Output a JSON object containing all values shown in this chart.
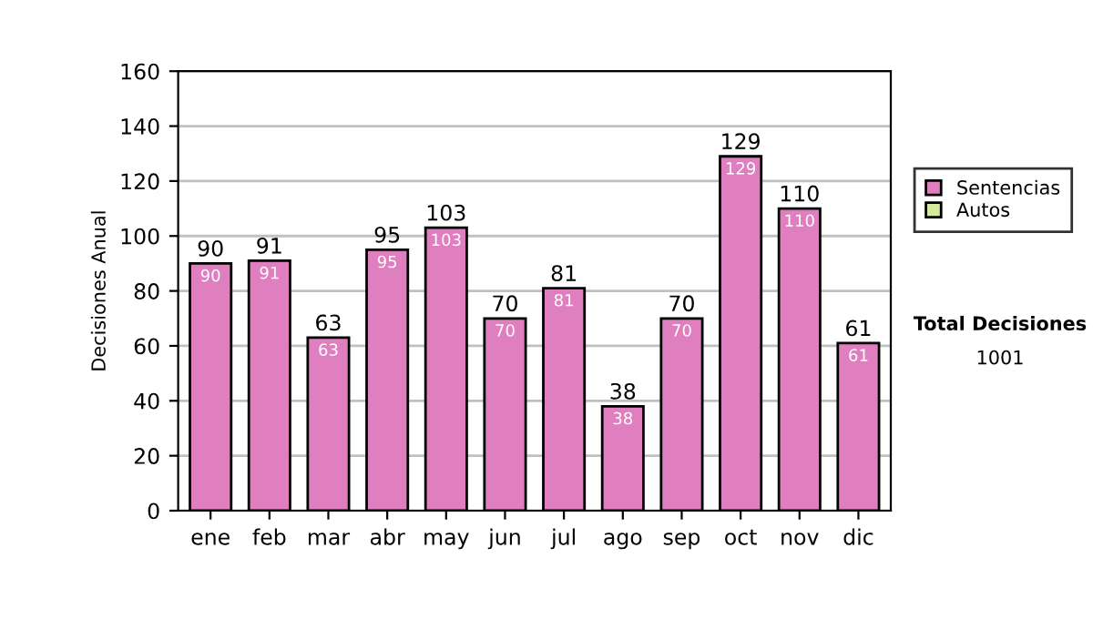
{
  "chart_data": {
    "type": "bar",
    "stacked": true,
    "ylabel": "Decisiones Anual",
    "categories": [
      "ene",
      "feb",
      "mar",
      "abr",
      "may",
      "jun",
      "jul",
      "ago",
      "sep",
      "oct",
      "nov",
      "dic"
    ],
    "series": [
      {
        "name": "Sentencias",
        "color": "#e07fc0",
        "values": [
          90,
          91,
          63,
          95,
          103,
          70,
          81,
          38,
          70,
          129,
          110,
          61
        ],
        "value_labels": [
          "90",
          "91",
          "63",
          "95",
          "103",
          "70",
          "81",
          "38",
          "70",
          "129",
          "110",
          "61"
        ]
      },
      {
        "name": "Autos",
        "color": "#d4ea9c",
        "values": [
          0,
          0,
          0,
          0,
          0,
          0,
          0,
          0,
          0,
          0,
          0,
          0
        ]
      }
    ],
    "totals": [
      "90",
      "91",
      "63",
      "95",
      "103",
      "70",
      "81",
      "38",
      "70",
      "129",
      "110",
      "61"
    ],
    "ylim": [
      0,
      160
    ],
    "yticks": [
      0,
      20,
      40,
      60,
      80,
      100,
      120,
      140,
      160
    ],
    "grid": "y",
    "legend": "right",
    "annotations": [
      "Total Decisiones",
      "1001"
    ]
  }
}
